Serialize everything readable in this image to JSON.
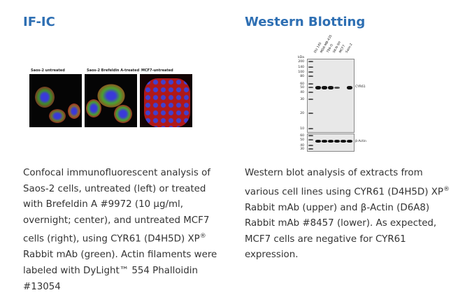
{
  "left": {
    "title": "IF-IC",
    "panels": [
      "Saos-2 untreated",
      "Saos-2 Brefeldin A-treated",
      "MCF7-untreated"
    ],
    "caption_a": "Confocal immunofluorescent analysis of Saos-2 cells, untreated (left) or treated with Brefeldin A #9972 (10 µg/ml, overnight; center), and untreated MCF7 cells (right), using CYR61 (D4H5D) XP",
    "caption_sup": "®",
    "caption_b": " Rabbit mAb (green). Actin filaments were labeled with DyLight™ 554 Phalloidin #13054"
  },
  "right": {
    "title": "Western Blotting",
    "mw_unit": "kDa",
    "lanes": [
      "DU 145",
      "MDA-MB-435",
      "786-O",
      "SK-N-SH",
      "MCF7",
      "Saos-2"
    ],
    "mw_upper": [
      "200",
      "140",
      "100",
      "80",
      "60",
      "50",
      "40",
      "30",
      "20",
      "10"
    ],
    "mw_lower": [
      "60",
      "50",
      "40",
      "30"
    ],
    "band_upper": "CYR61",
    "band_lower": "β-Actin",
    "caption_a": "Western blot analysis of extracts from various cell lines using CYR61 (D4H5D) XP",
    "caption_sup": "®",
    "caption_b": " Rabbit mAb (upper) and β-Actin (D6A8) Rabbit mAb #8457 (lower). As expected, MCF7 cells are negative for CYR61 expression."
  }
}
